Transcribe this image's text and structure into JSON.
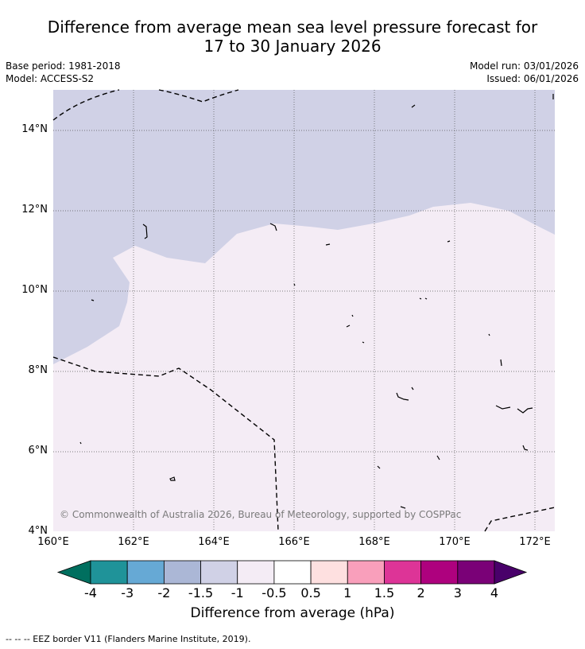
{
  "header": {
    "title_line1": "Difference from average mean sea level pressure forecast for",
    "title_line2": "17 to 30 January 2026",
    "base_period": "Base period: 1981-2018",
    "model": "Model: ACCESS-S2",
    "model_run": "Model run: 03/01/2026",
    "issued": "Issued: 06/01/2026"
  },
  "map": {
    "lat_labels": [
      "14°N",
      "12°N",
      "10°N",
      "8°N",
      "6°N",
      "4°N"
    ],
    "lon_labels": [
      "160°E",
      "162°E",
      "164°E",
      "166°E",
      "168°E",
      "170°E",
      "172°E"
    ],
    "copyright": "© Commonwealth of Australia 2026, Bureau of Meteorology, supported by COSPPac",
    "extent": {
      "lon_min": 160,
      "lon_max": 172.5,
      "lat_min": 4,
      "lat_max": 15
    },
    "regions": [
      {
        "category": "-1.5 to -1",
        "color": "#d0d1e6"
      },
      {
        "category": "-1 to -0.5",
        "color": "#f4ecf5"
      }
    ]
  },
  "colorbar": {
    "colors": [
      "#006f5f",
      "#1f9399",
      "#66a9d5",
      "#abb7d6",
      "#d0d1e6",
      "#f4ecf5",
      "#ffffff",
      "#fee0e0",
      "#f99fbb",
      "#dd3497",
      "#ae017e",
      "#7a0177",
      "#49006a"
    ],
    "ticks": [
      "-4",
      "-3",
      "-2",
      "-1.5",
      "-1",
      "-0.5",
      "0.5",
      "1",
      "1.5",
      "2",
      "3",
      "4"
    ],
    "label": "Difference from average (hPa)"
  },
  "footer": {
    "eez_note": "--  --  -- EEZ border V11 (Flanders Marine Institute, 2019)."
  }
}
